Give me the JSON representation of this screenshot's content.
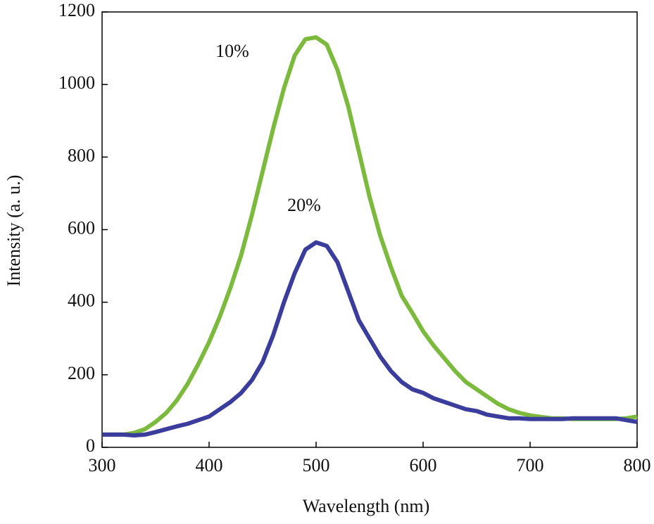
{
  "chart_data": {
    "type": "line",
    "xlabel": "Wavelength (nm)",
    "ylabel": "Intensity (a. u.)",
    "x": [
      300,
      310,
      320,
      330,
      340,
      350,
      360,
      370,
      380,
      390,
      400,
      410,
      420,
      430,
      440,
      450,
      460,
      470,
      480,
      490,
      500,
      510,
      520,
      530,
      540,
      550,
      560,
      570,
      580,
      590,
      600,
      610,
      620,
      630,
      640,
      650,
      660,
      670,
      680,
      690,
      700,
      710,
      720,
      730,
      740,
      750,
      760,
      770,
      780,
      790,
      800
    ],
    "series": [
      {
        "name": "10%",
        "color": "#7cba3e",
        "values": [
          35,
          35,
          35,
          40,
          50,
          70,
          95,
          130,
          175,
          230,
          290,
          360,
          440,
          530,
          640,
          760,
          880,
          990,
          1080,
          1125,
          1130,
          1110,
          1040,
          940,
          815,
          690,
          583,
          496,
          418,
          370,
          320,
          280,
          245,
          210,
          180,
          160,
          140,
          120,
          105,
          95,
          88,
          84,
          80,
          80,
          78,
          78,
          78,
          78,
          78,
          80,
          85
        ]
      },
      {
        "name": "20%",
        "color": "#3a3d9c",
        "values": [
          35,
          35,
          35,
          33,
          35,
          42,
          50,
          58,
          65,
          75,
          85,
          105,
          125,
          150,
          185,
          235,
          310,
          400,
          480,
          545,
          565,
          555,
          510,
          430,
          350,
          300,
          250,
          210,
          180,
          160,
          150,
          135,
          125,
          115,
          105,
          100,
          90,
          85,
          80,
          80,
          78,
          78,
          78,
          78,
          80,
          80,
          80,
          80,
          80,
          75,
          70
        ]
      }
    ],
    "xlim": [
      300,
      800
    ],
    "xticks": [
      300,
      400,
      500,
      600,
      700,
      800
    ],
    "ylim": [
      0,
      1200
    ],
    "yticks": [
      0,
      200,
      400,
      600,
      800,
      1000,
      1200
    ]
  }
}
